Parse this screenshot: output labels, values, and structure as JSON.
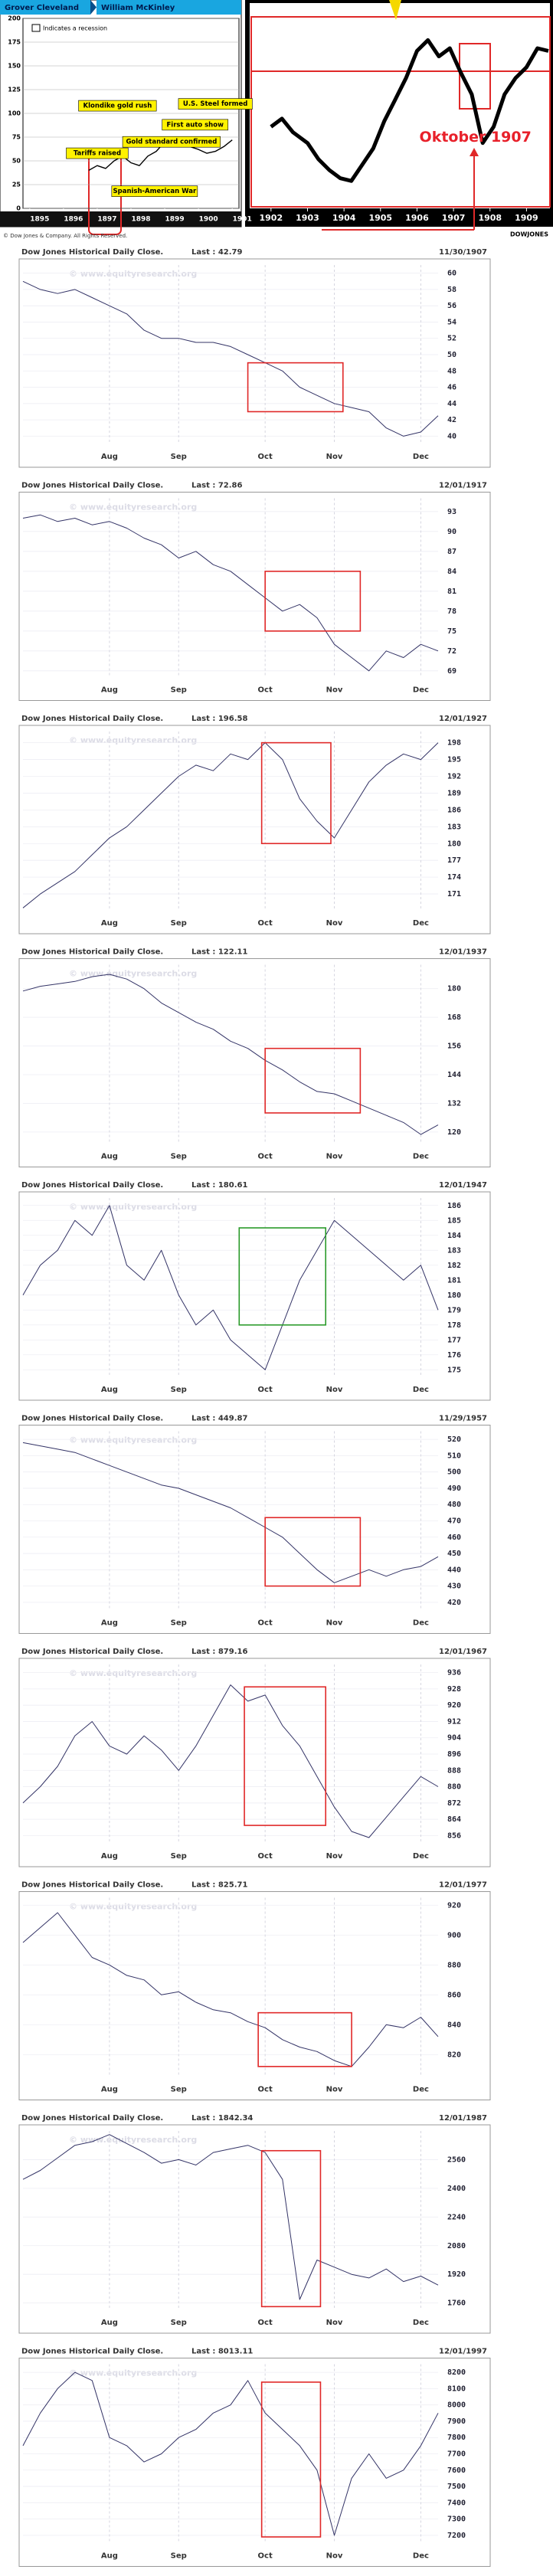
{
  "chart_data": [
    {
      "type": "line",
      "presidents": [
        "Grover Cleveland",
        "William McKinley"
      ],
      "x": [
        1896.75,
        1897,
        1897.25,
        1897.5,
        1897.75,
        1898,
        1898.25,
        1898.5,
        1898.75,
        1899,
        1899.25,
        1899.5,
        1899.75,
        1900,
        1900.25,
        1900.5,
        1900.75,
        1901
      ],
      "values": [
        40,
        45,
        42,
        50,
        55,
        48,
        45,
        55,
        60,
        70,
        75,
        72,
        65,
        62,
        58,
        60,
        65,
        72
      ],
      "color": "#000000",
      "xlim": [
        1894.8,
        1901.2
      ],
      "xticks": [
        1895,
        1896,
        1897,
        1898,
        1899,
        1900,
        1901
      ],
      "ylim": [
        0,
        200
      ],
      "yticks": [
        0,
        25,
        50,
        75,
        100,
        125,
        150,
        175,
        200
      ],
      "legend": "Indicates a recession",
      "annotations": [
        {
          "text": "Klondike gold rush",
          "x": 1897.6,
          "y": 108
        },
        {
          "text": "U.S. Steel formed",
          "x": 1900.5,
          "y": 110
        },
        {
          "text": "First auto show",
          "x": 1899.9,
          "y": 88
        },
        {
          "text": "Gold standard confirmed",
          "x": 1899.2,
          "y": 70
        },
        {
          "text": "Tariffs raised",
          "x": 1897.0,
          "y": 58
        },
        {
          "text": "Spanish-American War",
          "x": 1898.7,
          "y": 18
        }
      ],
      "footnote": "© Dow Jones & Company. All Rights Reserved."
    },
    {
      "type": "line",
      "x": [
        1902,
        1902.3,
        1902.6,
        1903,
        1903.3,
        1903.6,
        1903.9,
        1904.2,
        1904.5,
        1904.8,
        1905.1,
        1905.4,
        1905.7,
        1906,
        1906.3,
        1906.6,
        1906.9,
        1907.2,
        1907.5,
        1907.8,
        1908.1,
        1908.4,
        1908.7,
        1909,
        1909.3,
        1909.6
      ],
      "values": [
        64,
        67,
        62,
        58,
        52,
        48,
        45,
        44,
        50,
        56,
        66,
        74,
        82,
        92,
        96,
        90,
        93,
        84,
        76,
        58,
        64,
        76,
        82,
        86,
        93,
        92
      ],
      "color": "#000000",
      "xlim": [
        1901.5,
        1909.6
      ],
      "xticks": [
        1902,
        1903,
        1904,
        1905,
        1906,
        1907,
        1908,
        1909
      ],
      "ylim": [
        35,
        108
      ],
      "annotations": [
        {
          "text": "Oktober 1907",
          "x": 1907.6,
          "y": 60,
          "color": "#e8202a"
        }
      ],
      "logo": "DOWJONES"
    },
    {
      "type": "line",
      "title": "Dow Jones Historical Daily Close.",
      "last": "Last : 42.79",
      "date": "11/30/1907",
      "watermark": "© www.equityresearch.org",
      "categories": [
        null,
        null,
        null,
        null,
        null,
        "Aug",
        null,
        null,
        null,
        "Sep",
        null,
        null,
        null,
        null,
        "Oct",
        null,
        null,
        null,
        "Nov",
        null,
        null,
        null,
        null,
        "Dec",
        null
      ],
      "values": [
        59,
        58,
        57.5,
        58,
        57,
        56,
        55,
        53,
        52,
        52,
        51.5,
        51.5,
        51,
        50,
        49,
        48,
        46,
        45,
        44,
        43.5,
        43,
        41,
        40,
        40.5,
        42.5
      ],
      "color": "#333366",
      "ylim": [
        39,
        61
      ],
      "yticks": [
        40,
        42,
        44,
        46,
        48,
        50,
        52,
        54,
        56,
        58,
        60
      ],
      "grid": true,
      "highlight": {
        "x": [
          13,
          18.5
        ],
        "y": [
          43,
          49
        ],
        "color": "#e02828"
      }
    },
    {
      "type": "line",
      "title": "Dow Jones Historical Daily Close.",
      "last": "Last : 72.86",
      "date": "12/01/1917",
      "watermark": "© www.equityresearch.org",
      "categories": [
        null,
        null,
        null,
        null,
        null,
        "Aug",
        null,
        null,
        null,
        "Sep",
        null,
        null,
        null,
        null,
        "Oct",
        null,
        null,
        null,
        "Nov",
        null,
        null,
        null,
        null,
        "Dec",
        null
      ],
      "values": [
        92,
        92.5,
        91.5,
        92,
        91,
        91.5,
        90.5,
        89,
        88,
        86,
        87,
        85,
        84,
        82,
        80,
        78,
        79,
        77,
        73,
        71,
        69,
        72,
        71,
        73,
        72
      ],
      "color": "#333366",
      "ylim": [
        68,
        95
      ],
      "yticks": [
        69,
        72,
        75,
        78,
        81,
        84,
        87,
        90,
        93
      ],
      "grid": true,
      "highlight": {
        "x": [
          14,
          19.5
        ],
        "y": [
          75,
          84
        ],
        "color": "#e02828"
      }
    },
    {
      "type": "line",
      "title": "Dow Jones Historical Daily Close.",
      "last": "Last : 196.58",
      "date": "12/01/1927",
      "watermark": "© www.equityresearch.org",
      "categories": [
        null,
        null,
        null,
        null,
        null,
        "Aug",
        null,
        null,
        null,
        "Sep",
        null,
        null,
        null,
        null,
        "Oct",
        null,
        null,
        null,
        "Nov",
        null,
        null,
        null,
        null,
        "Dec",
        null
      ],
      "values": [
        168.5,
        171,
        173,
        175,
        178,
        181,
        183,
        186,
        189,
        192,
        194,
        193,
        196,
        195,
        198,
        195,
        188,
        184,
        181,
        186,
        191,
        194,
        196,
        195,
        198
      ],
      "color": "#333366",
      "ylim": [
        168,
        200
      ],
      "yticks": [
        171,
        174,
        177,
        180,
        183,
        186,
        189,
        192,
        195,
        198
      ],
      "grid": true,
      "highlight": {
        "x": [
          13.8,
          17.8
        ],
        "y": [
          180,
          198
        ],
        "color": "#e02828"
      }
    },
    {
      "type": "line",
      "title": "Dow Jones Historical Daily Close.",
      "last": "Last : 122.11",
      "date": "12/01/1937",
      "watermark": "© www.equityresearch.org",
      "categories": [
        null,
        null,
        null,
        null,
        null,
        "Aug",
        null,
        null,
        null,
        "Sep",
        null,
        null,
        null,
        null,
        "Oct",
        null,
        null,
        null,
        "Nov",
        null,
        null,
        null,
        null,
        "Dec",
        null
      ],
      "values": [
        179,
        181,
        182,
        183,
        185,
        186,
        184,
        180,
        174,
        170,
        166,
        163,
        158,
        155,
        150,
        146,
        141,
        137,
        136,
        133,
        130,
        127,
        124,
        119,
        123
      ],
      "color": "#333366",
      "ylim": [
        115,
        190
      ],
      "yticks": [
        120,
        132,
        144,
        156,
        168,
        180
      ],
      "grid": true,
      "highlight": {
        "x": [
          14,
          19.5
        ],
        "y": [
          128,
          155
        ],
        "color": "#e02828"
      }
    },
    {
      "type": "line",
      "title": "Dow Jones Historical Daily Close.",
      "last": "Last : 180.61",
      "date": "12/01/1947",
      "watermark": "© www.equityresearch.org",
      "categories": [
        null,
        null,
        null,
        null,
        null,
        "Aug",
        null,
        null,
        null,
        "Sep",
        null,
        null,
        null,
        null,
        "Oct",
        null,
        null,
        null,
        "Nov",
        null,
        null,
        null,
        null,
        "Dec",
        null
      ],
      "values": [
        180,
        182,
        183,
        185,
        184,
        186,
        182,
        181,
        183,
        180,
        178,
        179,
        177,
        176,
        175,
        178,
        181,
        183,
        185,
        184,
        183,
        182,
        181,
        182,
        179
      ],
      "color": "#333366",
      "ylim": [
        174.5,
        186.5
      ],
      "yticks": [
        175,
        176,
        177,
        178,
        179,
        180,
        181,
        182,
        183,
        184,
        185,
        186
      ],
      "grid": true,
      "highlight": {
        "x": [
          12.5,
          17.5
        ],
        "y": [
          178,
          184.5
        ],
        "color": "#2a9a2a"
      }
    },
    {
      "type": "line",
      "title": "Dow Jones Historical Daily Close.",
      "last": "Last : 449.87",
      "date": "11/29/1957",
      "watermark": "© www.equityresearch.org",
      "categories": [
        null,
        null,
        null,
        null,
        null,
        "Aug",
        null,
        null,
        null,
        "Sep",
        null,
        null,
        null,
        null,
        "Oct",
        null,
        null,
        null,
        "Nov",
        null,
        null,
        null,
        null,
        "Dec",
        null
      ],
      "values": [
        518,
        516,
        514,
        512,
        508,
        504,
        500,
        496,
        492,
        490,
        486,
        482,
        478,
        472,
        466,
        460,
        450,
        440,
        432,
        436,
        440,
        436,
        440,
        442,
        448
      ],
      "color": "#333366",
      "ylim": [
        415,
        525
      ],
      "yticks": [
        420,
        430,
        440,
        450,
        460,
        470,
        480,
        490,
        500,
        510,
        520
      ],
      "grid": true,
      "highlight": {
        "x": [
          14,
          19.5
        ],
        "y": [
          430,
          472
        ],
        "color": "#e02828"
      }
    },
    {
      "type": "line",
      "title": "Dow Jones Historical Daily Close.",
      "last": "Last : 879.16",
      "date": "12/01/1967",
      "watermark": "© www.equityresearch.org",
      "categories": [
        null,
        null,
        null,
        null,
        null,
        "Aug",
        null,
        null,
        null,
        "Sep",
        null,
        null,
        null,
        null,
        "Oct",
        null,
        null,
        null,
        "Nov",
        null,
        null,
        null,
        null,
        "Dec",
        null
      ],
      "values": [
        872,
        880,
        890,
        905,
        912,
        900,
        896,
        905,
        898,
        888,
        900,
        915,
        930,
        922,
        925,
        910,
        900,
        885,
        870,
        858,
        855,
        865,
        875,
        885,
        880
      ],
      "color": "#333366",
      "ylim": [
        852,
        940
      ],
      "yticks": [
        856,
        864,
        872,
        880,
        888,
        896,
        904,
        912,
        920,
        928,
        936
      ],
      "grid": true,
      "highlight": {
        "x": [
          12.8,
          17.5
        ],
        "y": [
          861,
          929
        ],
        "color": "#e02828"
      }
    },
    {
      "type": "line",
      "title": "Dow Jones Historical Daily Close.",
      "last": "Last : 825.71",
      "date": "12/01/1977",
      "watermark": "© www.equityresearch.org",
      "categories": [
        null,
        null,
        null,
        null,
        null,
        "Aug",
        null,
        null,
        null,
        "Sep",
        null,
        null,
        null,
        null,
        "Oct",
        null,
        null,
        null,
        "Nov",
        null,
        null,
        null,
        null,
        "Dec",
        null
      ],
      "values": [
        895,
        905,
        915,
        900,
        885,
        880,
        873,
        870,
        860,
        862,
        855,
        850,
        848,
        842,
        838,
        830,
        825,
        822,
        816,
        812,
        825,
        840,
        838,
        845,
        832
      ],
      "color": "#333366",
      "ylim": [
        805,
        925
      ],
      "yticks": [
        820,
        840,
        860,
        880,
        900,
        920
      ],
      "grid": true,
      "highlight": {
        "x": [
          13.6,
          19
        ],
        "y": [
          812,
          848
        ],
        "color": "#e02828"
      }
    },
    {
      "type": "line",
      "title": "Dow Jones Historical Daily Close.",
      "last": "Last : 1842.34",
      "date": "12/01/1987",
      "watermark": "© www.equityresearch.org",
      "categories": [
        null,
        null,
        null,
        null,
        null,
        "Aug",
        null,
        null,
        null,
        "Sep",
        null,
        null,
        null,
        null,
        "Oct",
        null,
        null,
        null,
        "Nov",
        null,
        null,
        null,
        null,
        "Dec",
        null
      ],
      "values": [
        2450,
        2500,
        2570,
        2640,
        2660,
        2700,
        2650,
        2600,
        2540,
        2560,
        2530,
        2600,
        2620,
        2640,
        2600,
        2450,
        1780,
        2000,
        1960,
        1920,
        1900,
        1950,
        1880,
        1910,
        1860
      ],
      "color": "#333366",
      "ylim": [
        1720,
        2720
      ],
      "yticks": [
        1760,
        1920,
        2080,
        2240,
        2400,
        2560
      ],
      "grid": true,
      "highlight": {
        "x": [
          13.8,
          17.2
        ],
        "y": [
          1740,
          2610
        ],
        "color": "#e02828"
      }
    },
    {
      "type": "line",
      "title": "Dow Jones Historical Daily Close.",
      "last": "Last : 8013.11",
      "date": "12/01/1997",
      "watermark": "© www.equityresearch.org",
      "categories": [
        null,
        null,
        null,
        null,
        null,
        "Aug",
        null,
        null,
        null,
        "Sep",
        null,
        null,
        null,
        null,
        "Oct",
        null,
        null,
        null,
        "Nov",
        null,
        null,
        null,
        null,
        "Dec",
        null
      ],
      "values": [
        7750,
        7950,
        8100,
        8200,
        8150,
        7800,
        7750,
        7650,
        7700,
        7800,
        7850,
        7950,
        8000,
        8150,
        7950,
        7850,
        7750,
        7600,
        7200,
        7550,
        7700,
        7550,
        7600,
        7750,
        7950
      ],
      "color": "#333366",
      "ylim": [
        7150,
        8250
      ],
      "yticks": [
        7200,
        7300,
        7400,
        7500,
        7600,
        7700,
        7800,
        7900,
        8000,
        8100,
        8200
      ],
      "grid": true,
      "highlight": {
        "x": [
          13.8,
          17.2
        ],
        "y": [
          7190,
          8140
        ],
        "color": "#e02828"
      }
    }
  ]
}
